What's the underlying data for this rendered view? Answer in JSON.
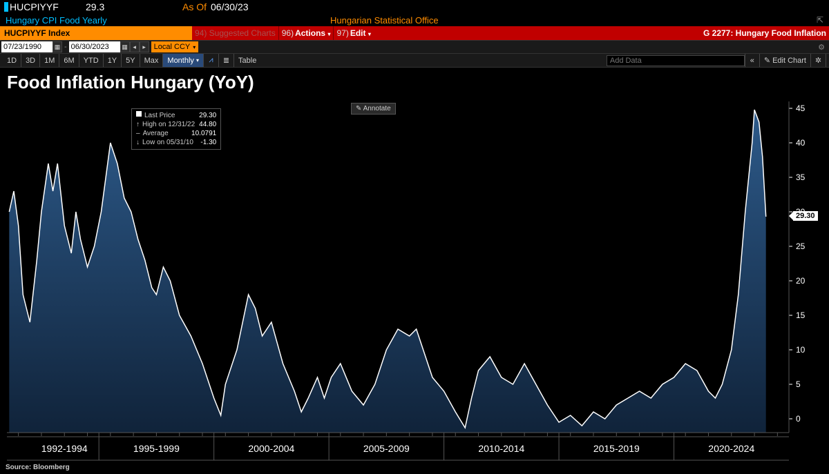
{
  "header": {
    "ticker": "HUCPIYYF",
    "value": "29.3",
    "as_of_label": "As Of",
    "as_of_date": "06/30/23",
    "description": "Hungary CPI Food Yearly",
    "source_name": "Hungarian Statistical Office"
  },
  "toolbar": {
    "ticker_label": "HUCPIYYF Index",
    "suggested": "94) Suggested Charts",
    "actions_code": "96)",
    "actions_label": "Actions",
    "edit_code": "97)",
    "edit_label": "Edit",
    "right_label": "G 2277: Hungary Food Inflation"
  },
  "dates": {
    "from": "07/23/1990",
    "to": "06/30/2023",
    "ccy_label": "Local CCY"
  },
  "ranges": {
    "r1d": "1D",
    "r3d": "3D",
    "r1m": "1M",
    "r6m": "6M",
    "rytd": "YTD",
    "r1y": "1Y",
    "r5y": "5Y",
    "rmax": "Max",
    "freq": "Monthly",
    "table": "Table",
    "add_data": "Add Data",
    "edit_chart": "Edit Chart"
  },
  "chart": {
    "title": "Food Inflation Hungary (YoY)",
    "type": "area",
    "legend": {
      "last_price_label": "Last Price",
      "last_price_value": "29.30",
      "high_label": "High on 12/31/22",
      "high_value": "44.80",
      "avg_label": "Average",
      "avg_value": "10.0791",
      "low_label": "Low on 05/31/10",
      "low_value": "-1.30"
    },
    "annotate_label": "Annotate",
    "last_marker": "29.30",
    "xlim": [
      1990.5,
      2024.5
    ],
    "ylim": [
      -2,
      46
    ],
    "ytick_step": 5,
    "yticks": [
      0,
      5,
      10,
      15,
      20,
      25,
      30,
      35,
      40,
      45
    ],
    "x_group_labels": [
      "1992-1994",
      "1995-1999",
      "2000-2004",
      "2005-2009",
      "2010-2014",
      "2015-2019",
      "2020-2024"
    ],
    "x_group_positions": [
      1993,
      1997,
      2002,
      2007,
      2012,
      2017,
      2022
    ],
    "line_color": "#ffffff",
    "line_width": 1.5,
    "fill_top_color": "#2d5a8a",
    "fill_bottom_color": "#10233a",
    "background_color": "#000000",
    "grid_color": "#333333",
    "axis_color": "#ffffff",
    "tick_fontsize": 12,
    "series": [
      {
        "x": 1990.6,
        "y": 30
      },
      {
        "x": 1990.8,
        "y": 33
      },
      {
        "x": 1991.0,
        "y": 28
      },
      {
        "x": 1991.2,
        "y": 18
      },
      {
        "x": 1991.5,
        "y": 14
      },
      {
        "x": 1991.8,
        "y": 23
      },
      {
        "x": 1992.0,
        "y": 30
      },
      {
        "x": 1992.3,
        "y": 37
      },
      {
        "x": 1992.5,
        "y": 33
      },
      {
        "x": 1992.7,
        "y": 37
      },
      {
        "x": 1993.0,
        "y": 28
      },
      {
        "x": 1993.3,
        "y": 24
      },
      {
        "x": 1993.5,
        "y": 30
      },
      {
        "x": 1993.7,
        "y": 26
      },
      {
        "x": 1994.0,
        "y": 22
      },
      {
        "x": 1994.3,
        "y": 25
      },
      {
        "x": 1994.6,
        "y": 30
      },
      {
        "x": 1995.0,
        "y": 40
      },
      {
        "x": 1995.3,
        "y": 37
      },
      {
        "x": 1995.6,
        "y": 32
      },
      {
        "x": 1995.9,
        "y": 30
      },
      {
        "x": 1996.2,
        "y": 26
      },
      {
        "x": 1996.5,
        "y": 23
      },
      {
        "x": 1996.8,
        "y": 19
      },
      {
        "x": 1997.0,
        "y": 18
      },
      {
        "x": 1997.3,
        "y": 22
      },
      {
        "x": 1997.6,
        "y": 20
      },
      {
        "x": 1998.0,
        "y": 15
      },
      {
        "x": 1998.5,
        "y": 12
      },
      {
        "x": 1999.0,
        "y": 8
      },
      {
        "x": 1999.5,
        "y": 3
      },
      {
        "x": 1999.8,
        "y": 0.5
      },
      {
        "x": 2000.0,
        "y": 5
      },
      {
        "x": 2000.5,
        "y": 10
      },
      {
        "x": 2001.0,
        "y": 18
      },
      {
        "x": 2001.3,
        "y": 16
      },
      {
        "x": 2001.6,
        "y": 12
      },
      {
        "x": 2002.0,
        "y": 14
      },
      {
        "x": 2002.5,
        "y": 8
      },
      {
        "x": 2003.0,
        "y": 4
      },
      {
        "x": 2003.3,
        "y": 1
      },
      {
        "x": 2003.6,
        "y": 3
      },
      {
        "x": 2004.0,
        "y": 6
      },
      {
        "x": 2004.3,
        "y": 3
      },
      {
        "x": 2004.6,
        "y": 6
      },
      {
        "x": 2005.0,
        "y": 8
      },
      {
        "x": 2005.5,
        "y": 4
      },
      {
        "x": 2006.0,
        "y": 2
      },
      {
        "x": 2006.5,
        "y": 5
      },
      {
        "x": 2007.0,
        "y": 10
      },
      {
        "x": 2007.5,
        "y": 13
      },
      {
        "x": 2008.0,
        "y": 12
      },
      {
        "x": 2008.3,
        "y": 13
      },
      {
        "x": 2008.6,
        "y": 10
      },
      {
        "x": 2009.0,
        "y": 6
      },
      {
        "x": 2009.5,
        "y": 4
      },
      {
        "x": 2010.0,
        "y": 1
      },
      {
        "x": 2010.42,
        "y": -1.3
      },
      {
        "x": 2010.7,
        "y": 3
      },
      {
        "x": 2011.0,
        "y": 7
      },
      {
        "x": 2011.5,
        "y": 9
      },
      {
        "x": 2012.0,
        "y": 6
      },
      {
        "x": 2012.5,
        "y": 5
      },
      {
        "x": 2013.0,
        "y": 8
      },
      {
        "x": 2013.5,
        "y": 5
      },
      {
        "x": 2014.0,
        "y": 2
      },
      {
        "x": 2014.5,
        "y": -0.5
      },
      {
        "x": 2015.0,
        "y": 0.5
      },
      {
        "x": 2015.5,
        "y": -1
      },
      {
        "x": 2016.0,
        "y": 1
      },
      {
        "x": 2016.5,
        "y": 0
      },
      {
        "x": 2017.0,
        "y": 2
      },
      {
        "x": 2017.5,
        "y": 3
      },
      {
        "x": 2018.0,
        "y": 4
      },
      {
        "x": 2018.5,
        "y": 3
      },
      {
        "x": 2019.0,
        "y": 5
      },
      {
        "x": 2019.5,
        "y": 6
      },
      {
        "x": 2020.0,
        "y": 8
      },
      {
        "x": 2020.5,
        "y": 7
      },
      {
        "x": 2021.0,
        "y": 4
      },
      {
        "x": 2021.3,
        "y": 3
      },
      {
        "x": 2021.6,
        "y": 5
      },
      {
        "x": 2022.0,
        "y": 10
      },
      {
        "x": 2022.3,
        "y": 18
      },
      {
        "x": 2022.6,
        "y": 30
      },
      {
        "x": 2022.9,
        "y": 40
      },
      {
        "x": 2023.0,
        "y": 44.8
      },
      {
        "x": 2023.2,
        "y": 43
      },
      {
        "x": 2023.35,
        "y": 38
      },
      {
        "x": 2023.5,
        "y": 29.3
      }
    ]
  },
  "source_label": "Source: Bloomberg"
}
